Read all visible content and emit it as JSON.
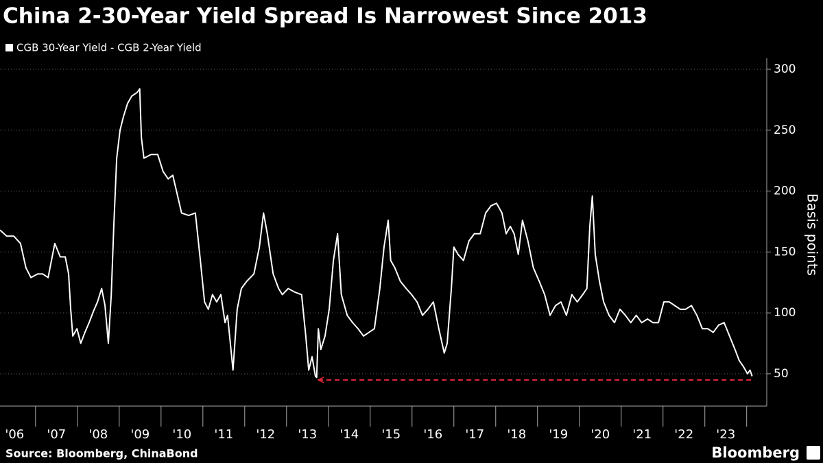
{
  "chart_data": {
    "type": "line",
    "title": "China 2-30-Year Yield Spread Is Narrowest Since 2013",
    "y_label": "Basis points",
    "source": "Source: Bloomberg, ChinaBond",
    "brand": "Bloomberg",
    "x": [
      2006.15,
      2006.31,
      2006.48,
      2006.64,
      2006.77,
      2006.89,
      2007.05,
      2007.17,
      2007.3,
      2007.38,
      2007.46,
      2007.59,
      2007.71,
      2007.79,
      2007.84,
      2007.89,
      2007.99,
      2008.08,
      2008.18,
      2008.28,
      2008.38,
      2008.48,
      2008.58,
      2008.66,
      2008.74,
      2008.81,
      2008.87,
      2008.94,
      2009.02,
      2009.1,
      2009.2,
      2009.3,
      2009.43,
      2009.49,
      2009.53,
      2009.59,
      2009.76,
      2009.92,
      2010.05,
      2010.17,
      2010.28,
      2010.41,
      2010.49,
      2010.66,
      2010.82,
      2010.94,
      2011.04,
      2011.13,
      2011.23,
      2011.33,
      2011.43,
      2011.53,
      2011.59,
      2011.72,
      2011.82,
      2011.92,
      2012.05,
      2012.22,
      2012.35,
      2012.45,
      2012.54,
      2012.68,
      2012.81,
      2012.9,
      2013.04,
      2013.2,
      2013.36,
      2013.46,
      2013.53,
      2013.61,
      2013.69,
      2013.72,
      2013.76,
      2013.82,
      2013.92,
      2014.02,
      2014.12,
      2014.22,
      2014.31,
      2014.45,
      2014.58,
      2014.71,
      2014.84,
      2014.97,
      2015.1,
      2015.23,
      2015.33,
      2015.43,
      2015.49,
      2015.59,
      2015.72,
      2015.86,
      2015.99,
      2016.12,
      2016.25,
      2016.38,
      2016.51,
      2016.64,
      2016.77,
      2016.84,
      2016.94,
      2017.0,
      2017.1,
      2017.23,
      2017.36,
      2017.49,
      2017.63,
      2017.76,
      2017.89,
      2018.02,
      2018.15,
      2018.25,
      2018.35,
      2018.44,
      2018.54,
      2018.64,
      2018.77,
      2018.9,
      2019.04,
      2019.17,
      2019.3,
      2019.43,
      2019.56,
      2019.69,
      2019.82,
      2019.95,
      2020.08,
      2020.18,
      2020.25,
      2020.31,
      2020.38,
      2020.48,
      2020.58,
      2020.71,
      2020.84,
      2020.97,
      2021.1,
      2021.23,
      2021.36,
      2021.49,
      2021.63,
      2021.76,
      2021.89,
      2022.02,
      2022.15,
      2022.28,
      2022.41,
      2022.54,
      2022.68,
      2022.81,
      2022.94,
      2023.07,
      2023.2,
      2023.33,
      2023.46,
      2023.59,
      2023.72,
      2023.82,
      2023.92,
      2024.02,
      2024.08,
      2024.13
    ],
    "series": [
      {
        "name": "CGB 30-Year Yield - CGB 2-Year Yield",
        "color": "#ffffff",
        "values": [
          168,
          163,
          163,
          157,
          137,
          129,
          132,
          132,
          129,
          143,
          157,
          146,
          146,
          132,
          103,
          81,
          87,
          75,
          84,
          92,
          101,
          109,
          120,
          106,
          75,
          115,
          171,
          227,
          250,
          261,
          272,
          278,
          281,
          284,
          244,
          227,
          230,
          230,
          216,
          210,
          213,
          194,
          182,
          180,
          182,
          143,
          109,
          103,
          115,
          109,
          115,
          92,
          98,
          53,
          103,
          120,
          126,
          132,
          154,
          182,
          165,
          132,
          120,
          115,
          120,
          117,
          115,
          81,
          53,
          64,
          48,
          47,
          87,
          70,
          81,
          103,
          143,
          165,
          115,
          98,
          92,
          87,
          81,
          84,
          87,
          120,
          154,
          176,
          143,
          137,
          126,
          120,
          115,
          109,
          98,
          103,
          109,
          87,
          67,
          75,
          120,
          154,
          148,
          143,
          159,
          165,
          165,
          182,
          188,
          190,
          182,
          165,
          171,
          165,
          148,
          176,
          159,
          137,
          126,
          115,
          98,
          106,
          109,
          98,
          115,
          109,
          115,
          120,
          171,
          196,
          148,
          126,
          109,
          98,
          92,
          103,
          98,
          92,
          98,
          92,
          95,
          92,
          92,
          109,
          109,
          106,
          103,
          103,
          106,
          98,
          87,
          87,
          84,
          90,
          92,
          81,
          70,
          61,
          56,
          50,
          53,
          48
        ]
      }
    ],
    "xlim": [
      2006.15,
      2024.48
    ],
    "xticks": [
      {
        "value": 2006.5,
        "label": "'06"
      },
      {
        "value": 2007.5,
        "label": "'07"
      },
      {
        "value": 2008.5,
        "label": "'08"
      },
      {
        "value": 2009.5,
        "label": "'09"
      },
      {
        "value": 2010.5,
        "label": "'10"
      },
      {
        "value": 2011.5,
        "label": "'11"
      },
      {
        "value": 2012.5,
        "label": "'12"
      },
      {
        "value": 2013.5,
        "label": "'13"
      },
      {
        "value": 2014.5,
        "label": "'14"
      },
      {
        "value": 2015.5,
        "label": "'15"
      },
      {
        "value": 2016.5,
        "label": "'16"
      },
      {
        "value": 2017.5,
        "label": "'17"
      },
      {
        "value": 2018.5,
        "label": "'18"
      },
      {
        "value": 2019.5,
        "label": "'19"
      },
      {
        "value": 2020.5,
        "label": "'20"
      },
      {
        "value": 2021.5,
        "label": "'21"
      },
      {
        "value": 2022.5,
        "label": "'22"
      },
      {
        "value": 2023.5,
        "label": "'23"
      }
    ],
    "ylim": [
      23.5,
      309
    ],
    "yticks": [
      50,
      100,
      150,
      200,
      250,
      300
    ],
    "grid": true,
    "reference_line": {
      "value": 45,
      "x": [
        2013.76,
        2024.13
      ],
      "color": "#e8283c"
    }
  }
}
